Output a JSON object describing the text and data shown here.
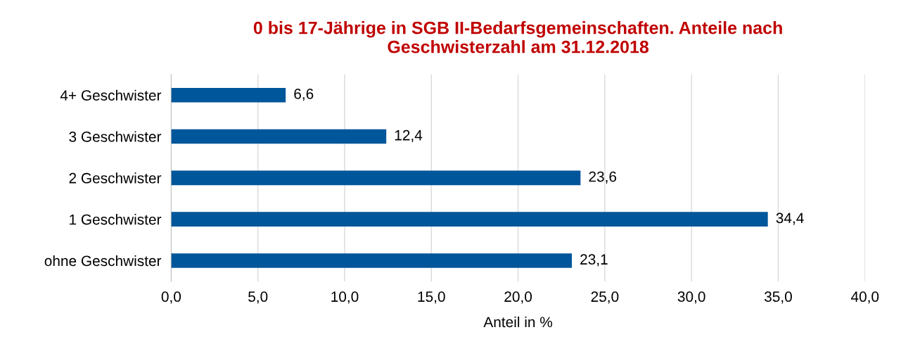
{
  "chart_data": {
    "type": "bar",
    "orientation": "horizontal",
    "title": "0 bis 17-Jährige in SGB II-Bedarfsgemeinschaften. Anteile nach\nGeschwisterzahl am 31.12.2018",
    "xlabel": "Anteil in %",
    "categories": [
      "4+ Geschwister",
      "3 Geschwister",
      "2 Geschwister",
      "1 Geschwister",
      "ohne Geschwister"
    ],
    "values": [
      6.6,
      12.4,
      23.6,
      34.4,
      23.1
    ],
    "value_labels": [
      "6,6",
      "12,4",
      "23,6",
      "34,4",
      "23,1"
    ],
    "color": "#00569a",
    "xlim": [
      0,
      40
    ],
    "xticks": [
      {
        "value": 0,
        "label": "0,0"
      },
      {
        "value": 5,
        "label": "5,0"
      },
      {
        "value": 10,
        "label": "10,0"
      },
      {
        "value": 15,
        "label": "15,0"
      },
      {
        "value": 20,
        "label": "20,0"
      },
      {
        "value": 25,
        "label": "25,0"
      },
      {
        "value": 30,
        "label": "30,0"
      },
      {
        "value": 35,
        "label": "35,0"
      },
      {
        "value": 40,
        "label": "40,0"
      }
    ],
    "grid": "x"
  }
}
